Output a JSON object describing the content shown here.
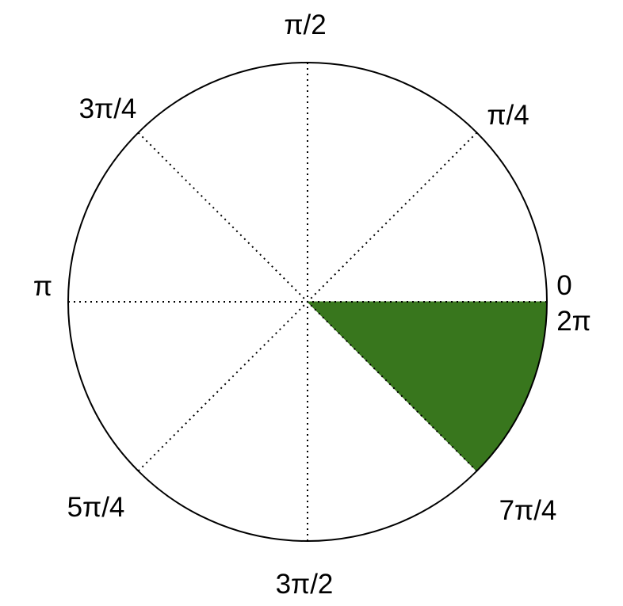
{
  "diagram": {
    "angle_labels": {
      "zero": "0",
      "pi_over_4": "π/4",
      "pi_over_2": "π/2",
      "three_pi_over_4": "3π/4",
      "pi": "π",
      "five_pi_over_4": "5π/4",
      "three_pi_over_2": "3π/2",
      "seven_pi_over_4": "7π/4",
      "two_pi": "2π"
    },
    "shaded_sector": {
      "from_label": "7π/4",
      "to_label": "2π",
      "color": "#38761d"
    },
    "circle_color": "#000000",
    "guide_line_style": "dotted"
  }
}
